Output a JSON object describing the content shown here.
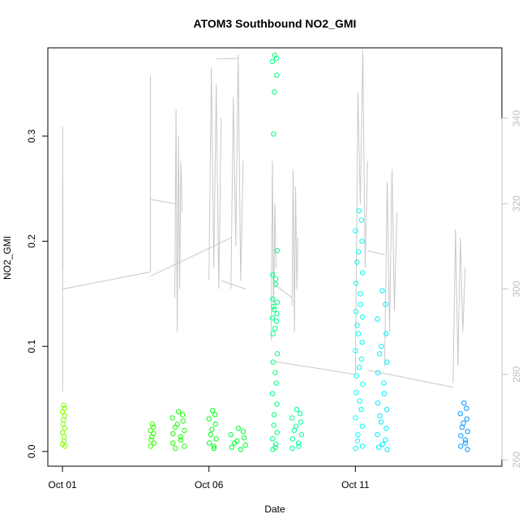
{
  "chart_data": {
    "type": "scatter",
    "title": "ATOM3 Southbound NO2_GMI",
    "xlabel": "Date",
    "ylabel": "NO2_GMI",
    "x_range": [
      "2017-09-30T12:00",
      "2017-10-16T00:00"
    ],
    "ylim": [
      -0.014,
      0.384
    ],
    "y2lim": [
      258.5,
      356.5
    ],
    "x_ticks": [
      {
        "date": "2017-10-01T00:00",
        "label": "Oct 01"
      },
      {
        "date": "2017-10-06T00:00",
        "label": "Oct 06"
      },
      {
        "date": "2017-10-11T00:00",
        "label": "Oct 11"
      }
    ],
    "y_ticks": [
      {
        "value": 0.0,
        "label": "0.0"
      },
      {
        "value": 0.1,
        "label": "0.1"
      },
      {
        "value": 0.2,
        "label": "0.2"
      },
      {
        "value": 0.3,
        "label": "0.3"
      }
    ],
    "y2_ticks": [
      {
        "value": 260,
        "label": "260"
      },
      {
        "value": 280,
        "label": "280"
      },
      {
        "value": 300,
        "label": "300"
      },
      {
        "value": 320,
        "label": "320"
      },
      {
        "value": 340,
        "label": "340"
      }
    ],
    "line_color": "#c8c8c8",
    "secondary_line": {
      "name": "",
      "segments": [
        {
          "x": [
            "2017-10-01T00:05",
            "2017-10-01T00:07",
            "2017-10-01T00:09",
            "2017-10-01T00:11",
            "2017-10-01T00:14",
            "2017-10-01T00:17",
            "2017-10-01T00:20"
          ],
          "y": [
            276,
            330,
            300,
            338,
            325,
            318,
            305
          ]
        },
        {
          "x": [
            "2017-10-01T00:20",
            "2017-10-04T00:00"
          ],
          "y": [
            300,
            304
          ]
        },
        {
          "x": [
            "2017-10-04T00:00",
            "2017-10-04T00:02",
            "2017-10-04T00:04",
            "2017-10-04T00:06"
          ],
          "y": [
            304,
            350,
            330,
            320
          ]
        },
        {
          "x": [
            "2017-10-04T00:06",
            "2017-10-04T20:00"
          ],
          "y": [
            321,
            320
          ]
        },
        {
          "x": [
            "2017-10-04T20:00",
            "2017-10-04T21:00",
            "2017-10-04T22:00",
            "2017-10-04T23:00",
            "2017-10-05T00:00",
            "2017-10-05T01:00",
            "2017-10-05T02:00"
          ],
          "y": [
            298,
            342,
            290,
            336,
            300,
            330,
            318
          ]
        },
        {
          "x": [
            "2017-10-04T00:06",
            "2017-10-06T18:00"
          ],
          "y": [
            303,
            312
          ]
        },
        {
          "x": [
            "2017-10-06T00:00",
            "2017-10-06T02:00",
            "2017-10-06T04:00",
            "2017-10-06T06:00",
            "2017-10-06T08:00",
            "2017-10-06T10:00"
          ],
          "y": [
            302,
            352,
            305,
            348,
            300,
            340
          ]
        },
        {
          "x": [
            "2017-10-06T06:00",
            "2017-10-07T00:00"
          ],
          "y": [
            354,
            354
          ]
        },
        {
          "x": [
            "2017-10-06T10:00",
            "2017-10-07T06:00"
          ],
          "y": [
            302,
            300
          ]
        },
        {
          "x": [
            "2017-10-06T18:00",
            "2017-10-06T20:00",
            "2017-10-06T22:00",
            "2017-10-07T00:00",
            "2017-10-07T02:00",
            "2017-10-07T04:00"
          ],
          "y": [
            300,
            345,
            310,
            355,
            302,
            330
          ]
        },
        {
          "x": [
            "2017-10-08T03:00",
            "2017-10-08T04:00",
            "2017-10-08T05:00",
            "2017-10-08T06:00",
            "2017-10-08T07:00"
          ],
          "y": [
            288,
            330,
            295,
            320,
            305
          ]
        },
        {
          "x": [
            "2017-10-08T06:00",
            "2017-10-08T20:00"
          ],
          "y": [
            301,
            298
          ]
        },
        {
          "x": [
            "2017-10-08T20:00",
            "2017-10-08T21:00",
            "2017-10-08T22:00",
            "2017-10-08T23:00",
            "2017-10-09T00:00",
            "2017-10-09T01:00"
          ],
          "y": [
            296,
            328,
            290,
            324,
            300,
            312
          ]
        },
        {
          "x": [
            "2017-10-08T06:00",
            "2017-10-11T00:00"
          ],
          "y": [
            283,
            280
          ]
        },
        {
          "x": [
            "2017-10-11T00:00",
            "2017-10-11T02:00",
            "2017-10-11T04:00",
            "2017-10-11T06:00",
            "2017-10-11T08:00",
            "2017-10-11T10:00"
          ],
          "y": [
            280,
            346,
            320,
            356,
            305,
            330
          ]
        },
        {
          "x": [
            "2017-10-11T10:00",
            "2017-10-12T00:00"
          ],
          "y": [
            309,
            308
          ]
        },
        {
          "x": [
            "2017-10-12T00:00",
            "2017-10-12T02:00",
            "2017-10-12T04:00",
            "2017-10-12T06:00",
            "2017-10-12T08:00",
            "2017-10-12T10:00"
          ],
          "y": [
            282,
            325,
            290,
            328,
            295,
            318
          ]
        },
        {
          "x": [
            "2017-10-11T10:00",
            "2017-10-14T08:00"
          ],
          "y": [
            281,
            277
          ]
        },
        {
          "x": [
            "2017-10-14T08:00",
            "2017-10-14T10:00",
            "2017-10-14T12:00",
            "2017-10-14T14:00",
            "2017-10-14T16:00",
            "2017-10-14T18:00"
          ],
          "y": [
            278,
            314,
            282,
            312,
            290,
            305
          ]
        }
      ]
    },
    "series": [
      {
        "name": "",
        "color": "#80ff00",
        "x_range": [
          "2017-10-01T00:00",
          "2017-10-01T02:00"
        ],
        "y": [
          0.044,
          0.041,
          0.038,
          0.034,
          0.03,
          0.026,
          0.022,
          0.018,
          0.014,
          0.01,
          0.007,
          0.005
        ]
      },
      {
        "name": "",
        "color": "#33ff00",
        "x_range": [
          "2017-10-04T00:00",
          "2017-10-04T03:00"
        ],
        "y": [
          0.026,
          0.023,
          0.02,
          0.017,
          0.014,
          0.011,
          0.008,
          0.005
        ]
      },
      {
        "name": "",
        "color": "#1aff00",
        "x_range": [
          "2017-10-04T18:00",
          "2017-10-05T04:00"
        ],
        "y": [
          0.038,
          0.035,
          0.032,
          0.029,
          0.026,
          0.023,
          0.02,
          0.017,
          0.014,
          0.011,
          0.008,
          0.005,
          0.003
        ]
      },
      {
        "name": "",
        "color": "#00ff1a",
        "x_range": [
          "2017-10-06T00:00",
          "2017-10-06T06:00"
        ],
        "y": [
          0.039,
          0.035,
          0.031,
          0.026,
          0.021,
          0.016,
          0.012,
          0.008,
          0.005,
          0.003
        ]
      },
      {
        "name": "",
        "color": "#00ff33",
        "x_range": [
          "2017-10-06T18:00",
          "2017-10-07T06:00"
        ],
        "y": [
          0.022,
          0.019,
          0.016,
          0.013,
          0.01,
          0.008,
          0.006,
          0.004,
          0.002
        ]
      },
      {
        "name": "",
        "color": "#00ff80",
        "x_range": [
          "2017-10-08T04:00",
          "2017-10-08T08:00"
        ],
        "y": [
          0.377,
          0.374,
          0.371,
          0.358,
          0.342,
          0.302,
          0.191,
          0.168,
          0.164,
          0.159,
          0.145,
          0.142,
          0.138,
          0.135,
          0.131,
          0.127,
          0.124,
          0.117,
          0.112,
          0.093,
          0.085,
          0.075,
          0.065,
          0.055,
          0.045,
          0.035,
          0.025,
          0.018,
          0.012,
          0.007,
          0.004,
          0.002
        ]
      },
      {
        "name": "",
        "color": "#00ff99",
        "x_range": [
          "2017-10-08T20:00",
          "2017-10-09T04:00"
        ],
        "y": [
          0.04,
          0.036,
          0.032,
          0.028,
          0.024,
          0.02,
          0.016,
          0.012,
          0.008,
          0.005,
          0.003
        ]
      },
      {
        "name": "",
        "color": "#00ffee",
        "x_range": [
          "2017-10-11T00:00",
          "2017-10-11T06:00"
        ],
        "y": [
          0.229,
          0.22,
          0.21,
          0.2,
          0.19,
          0.18,
          0.17,
          0.16,
          0.15,
          0.14,
          0.133,
          0.128,
          0.12,
          0.112,
          0.104,
          0.096,
          0.088,
          0.08,
          0.072,
          0.064,
          0.056,
          0.048,
          0.04,
          0.032,
          0.024,
          0.016,
          0.01,
          0.005,
          0.003
        ]
      },
      {
        "name": "",
        "color": "#00f0ff",
        "x_range": [
          "2017-10-11T18:00",
          "2017-10-12T02:00"
        ],
        "y": [
          0.153,
          0.14,
          0.126,
          0.112,
          0.1,
          0.093,
          0.085,
          0.075,
          0.065,
          0.055,
          0.046,
          0.04,
          0.034,
          0.028,
          0.022,
          0.016,
          0.011,
          0.007,
          0.004,
          0.002
        ]
      },
      {
        "name": "",
        "color": "#0099ff",
        "x_range": [
          "2017-10-14T14:00",
          "2017-10-14T20:00"
        ],
        "y": [
          0.046,
          0.041,
          0.036,
          0.031,
          0.027,
          0.023,
          0.019,
          0.015,
          0.011,
          0.008,
          0.005,
          0.002
        ]
      }
    ]
  }
}
